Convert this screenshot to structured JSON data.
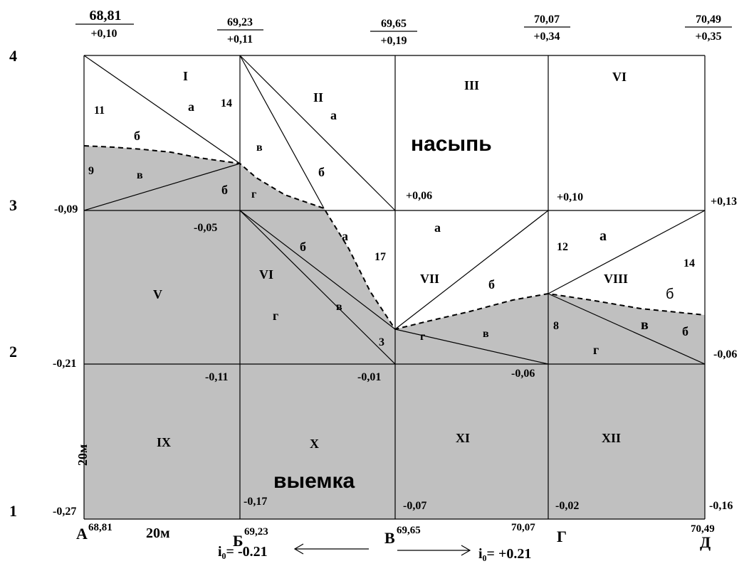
{
  "top_marks": [
    {
      "elev": "68,81",
      "work": "+0,10"
    },
    {
      "elev": "69,23",
      "work": "+0,11"
    },
    {
      "elev": "69,65",
      "work": "+0,19"
    },
    {
      "elev": "70,07",
      "work": "+0,34"
    },
    {
      "elev": "70,49",
      "work": "+0,35"
    }
  ],
  "row_labels": [
    "4",
    "3",
    "2",
    "1"
  ],
  "column_labels": [
    "А",
    "Б",
    "В",
    "Г",
    "Д"
  ],
  "bottom_elevations": [
    "68,81",
    "69,23",
    "69,65",
    "70,07",
    "70,49"
  ],
  "row3_marks": [
    "-0,09",
    "-0,05",
    "+0,06",
    "+0,10",
    "+0,13"
  ],
  "row2_marks": [
    "-0,21",
    "-0,11",
    "-0,01",
    "-0,06",
    "-0,06"
  ],
  "row1_marks": [
    "-0,27",
    "-0,17",
    "-0,07",
    "-0,02",
    "-0,16"
  ],
  "squares": [
    "I",
    "II",
    "III",
    "VI",
    "V",
    "VI",
    "VII",
    "VIII",
    "IX",
    "X",
    "XI",
    "XII"
  ],
  "sub_labels": {
    "s1": [
      "а",
      "б",
      "в",
      "б"
    ],
    "s2": [
      "а",
      "б",
      "в",
      "г"
    ],
    "s6": [
      "а",
      "б",
      "в",
      "г"
    ],
    "s7": [
      "а",
      "б",
      "в",
      "г"
    ],
    "s8": [
      "а",
      "б",
      "в",
      "г",
      "б"
    ]
  },
  "distances": [
    "11",
    "14",
    "9",
    "17",
    "3",
    "12",
    "14",
    "8"
  ],
  "zones": {
    "fill": "насыпь",
    "cut": "выемка"
  },
  "scale": {
    "vertical": "20м",
    "horizontal": "20м"
  },
  "slopes": {
    "left": "i₀= -0.21",
    "right": "i₀= +0.21"
  },
  "colors": {
    "cut_fill": "#c0c0c0",
    "background": "#ffffff",
    "lines": "#000000"
  }
}
